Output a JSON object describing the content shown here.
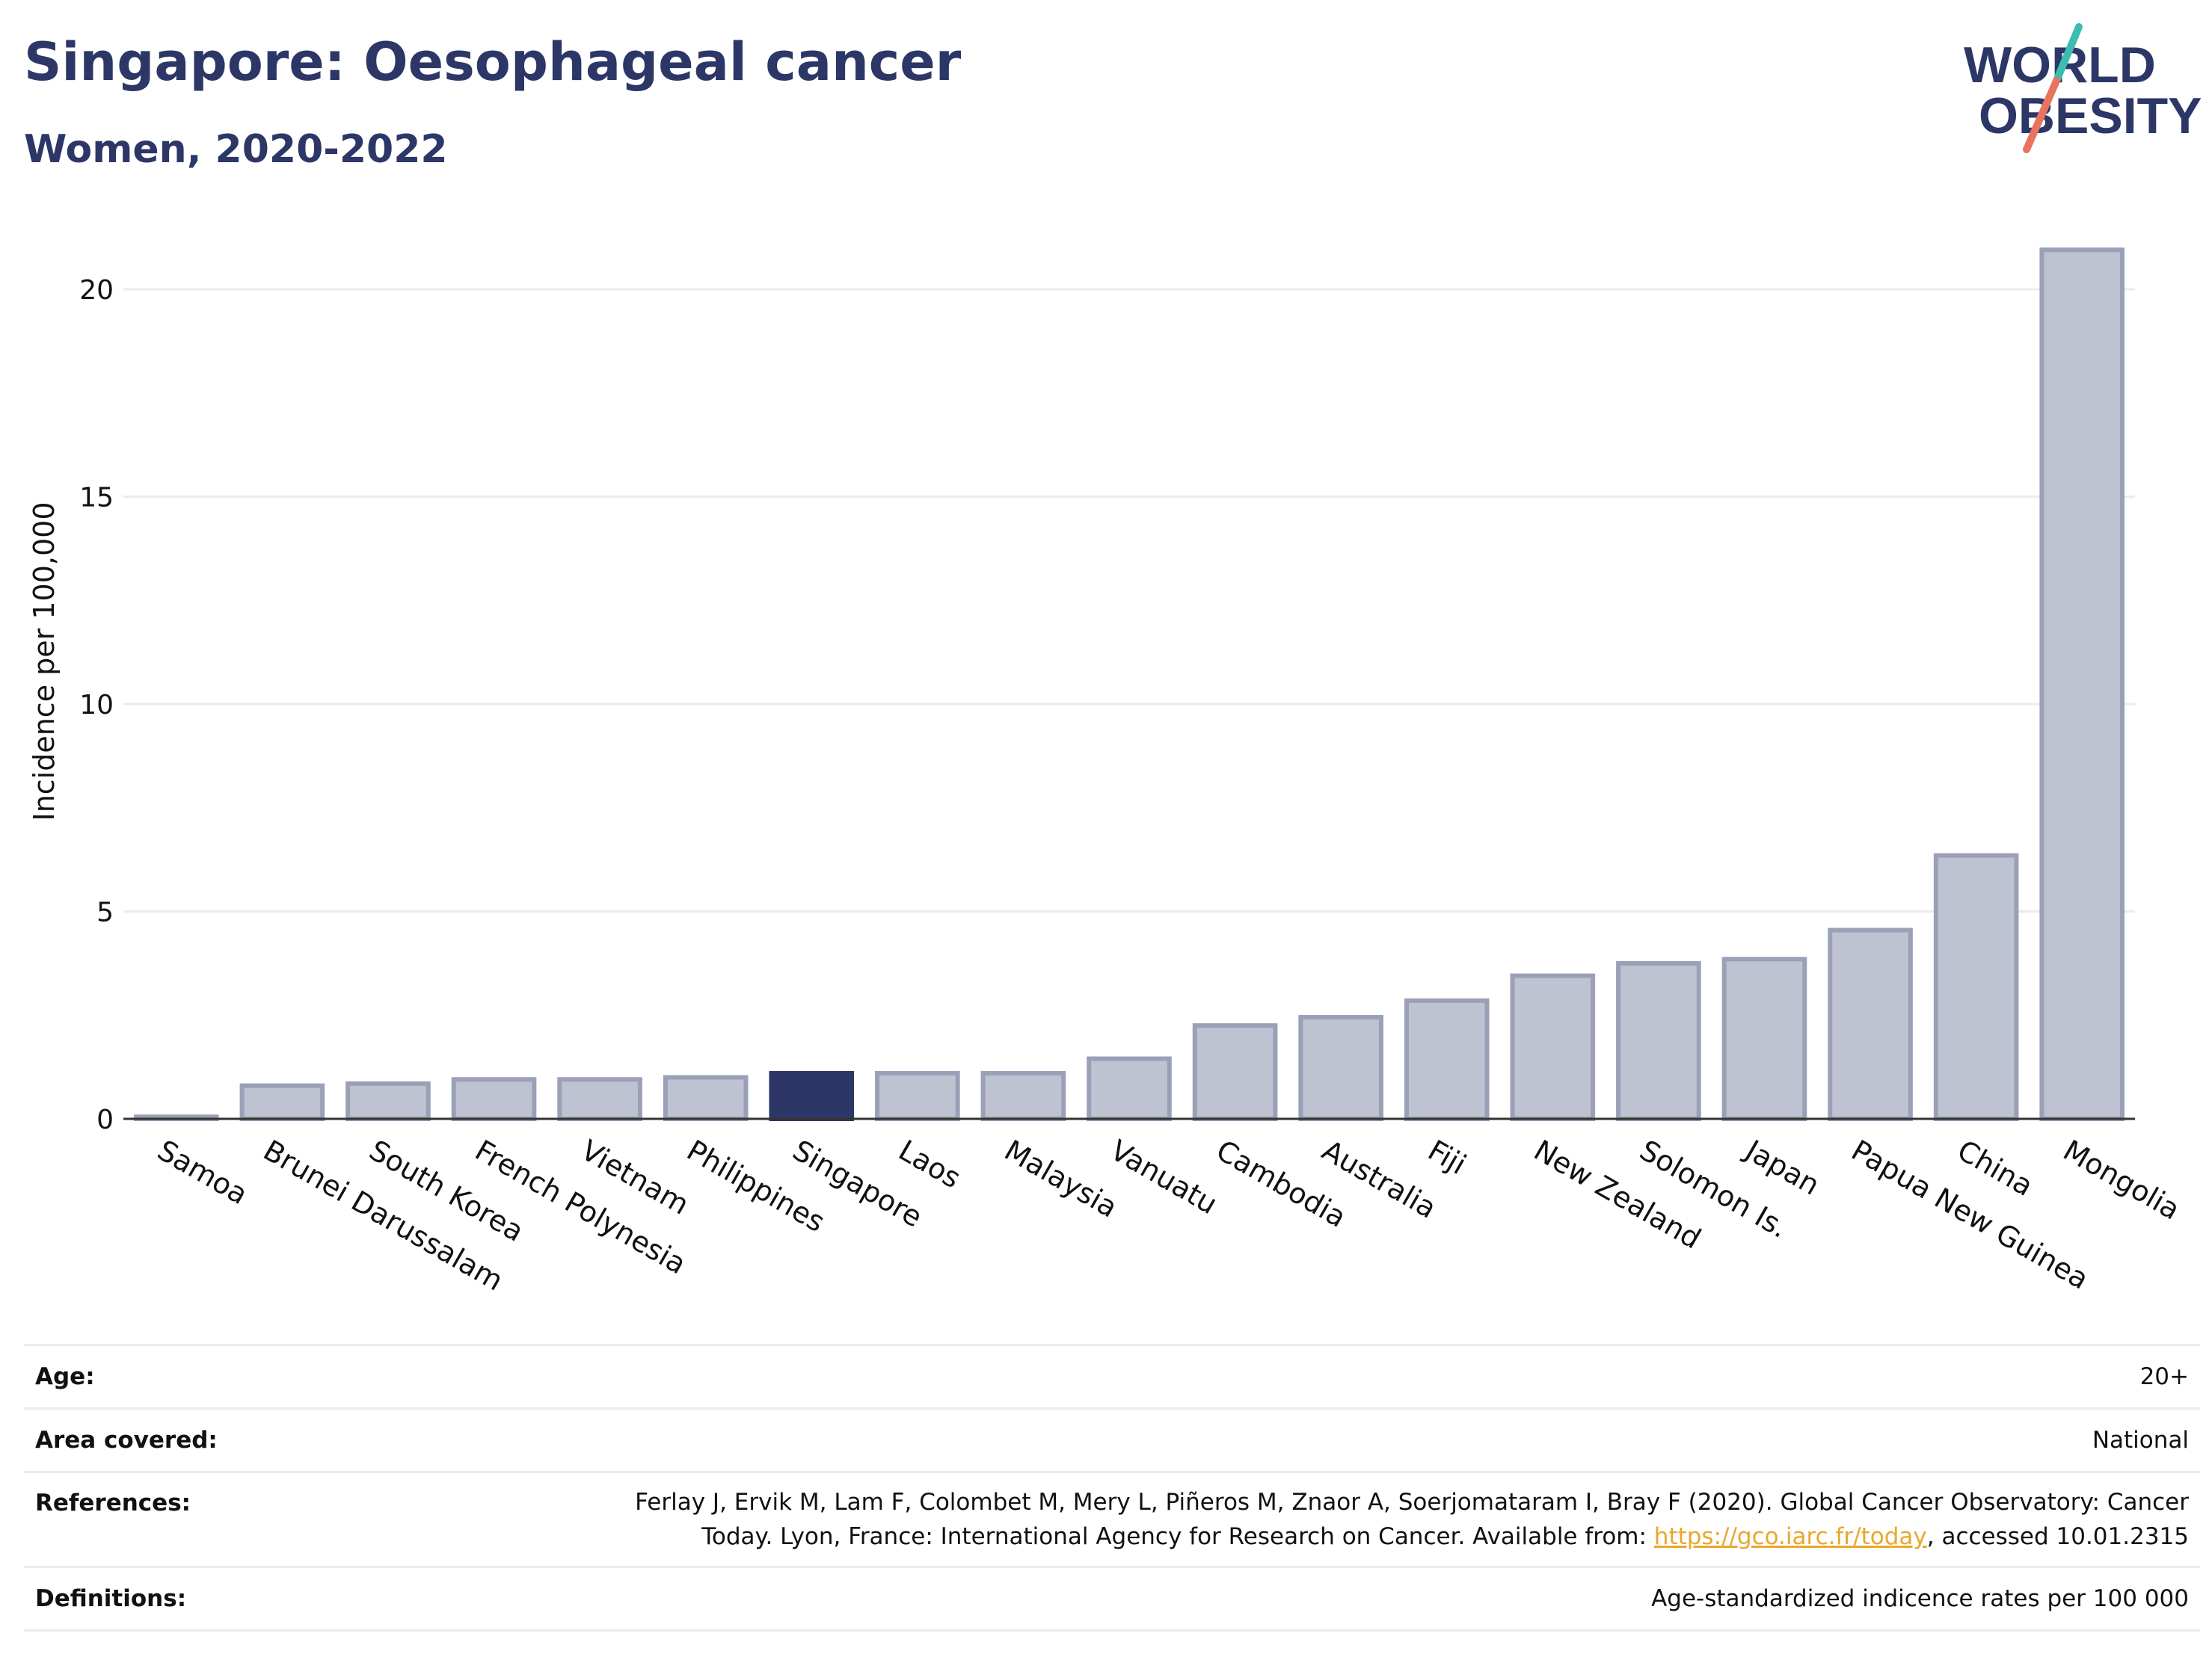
{
  "header": {
    "title": "Singapore: Oesophageal cancer",
    "subtitle": "Women, 2020-2022"
  },
  "logo": {
    "line1": "WORLD",
    "line2": "OBESITY",
    "accent_teal": "#3dbdb1",
    "accent_red": "#e8735f",
    "text_color": "#2c3767"
  },
  "colors": {
    "highlight": "#2c3767",
    "bar_fill": "#bfc2d0",
    "bar_stroke": "#9aa0b8",
    "grid": "#ebebf0"
  },
  "chart_data": {
    "type": "bar",
    "title": "Singapore: Oesophageal cancer",
    "subtitle": "Women, 2020-2022",
    "ylabel": "Incidence per 100,000",
    "xlabel": "",
    "ylim": [
      0,
      22
    ],
    "yticks": [
      0,
      5,
      10,
      15,
      20
    ],
    "grid": true,
    "highlight": "Singapore",
    "categories": [
      "Samoa",
      "Brunei Darussalam",
      "South Korea",
      "French Polynesia",
      "Vietnam",
      "Philippines",
      "Singapore",
      "Laos",
      "Malaysia",
      "Vanuatu",
      "Cambodia",
      "Australia",
      "Fiji",
      "New Zealand",
      "Solomon Is.",
      "Japan",
      "Papua New Guinea",
      "China",
      "Mongolia"
    ],
    "values": [
      0.05,
      0.8,
      0.85,
      0.95,
      0.95,
      1.0,
      1.1,
      1.1,
      1.1,
      1.45,
      2.25,
      2.45,
      2.85,
      3.45,
      3.75,
      3.85,
      4.55,
      6.35,
      20.95
    ]
  },
  "info": {
    "age_label": "Age:",
    "age_value": "20+",
    "area_label": "Area covered:",
    "area_value": "National",
    "references_label": "References:",
    "references_line1": "Ferlay J, Ervik M, Lam F, Colombet M, Mery L, Piñeros M, Znaor A, Soerjomataram I, Bray F (2020). Global Cancer Observatory: Cancer",
    "references_line2_pre": "Today. Lyon, France: International Agency for Research on Cancer. Available from: ",
    "references_link": "https://gco.iarc.fr/today",
    "references_line2_post": ", accessed 10.01.2315",
    "definitions_label": "Definitions:",
    "definitions_value": "Age-standardized indicence rates per 100 000"
  }
}
